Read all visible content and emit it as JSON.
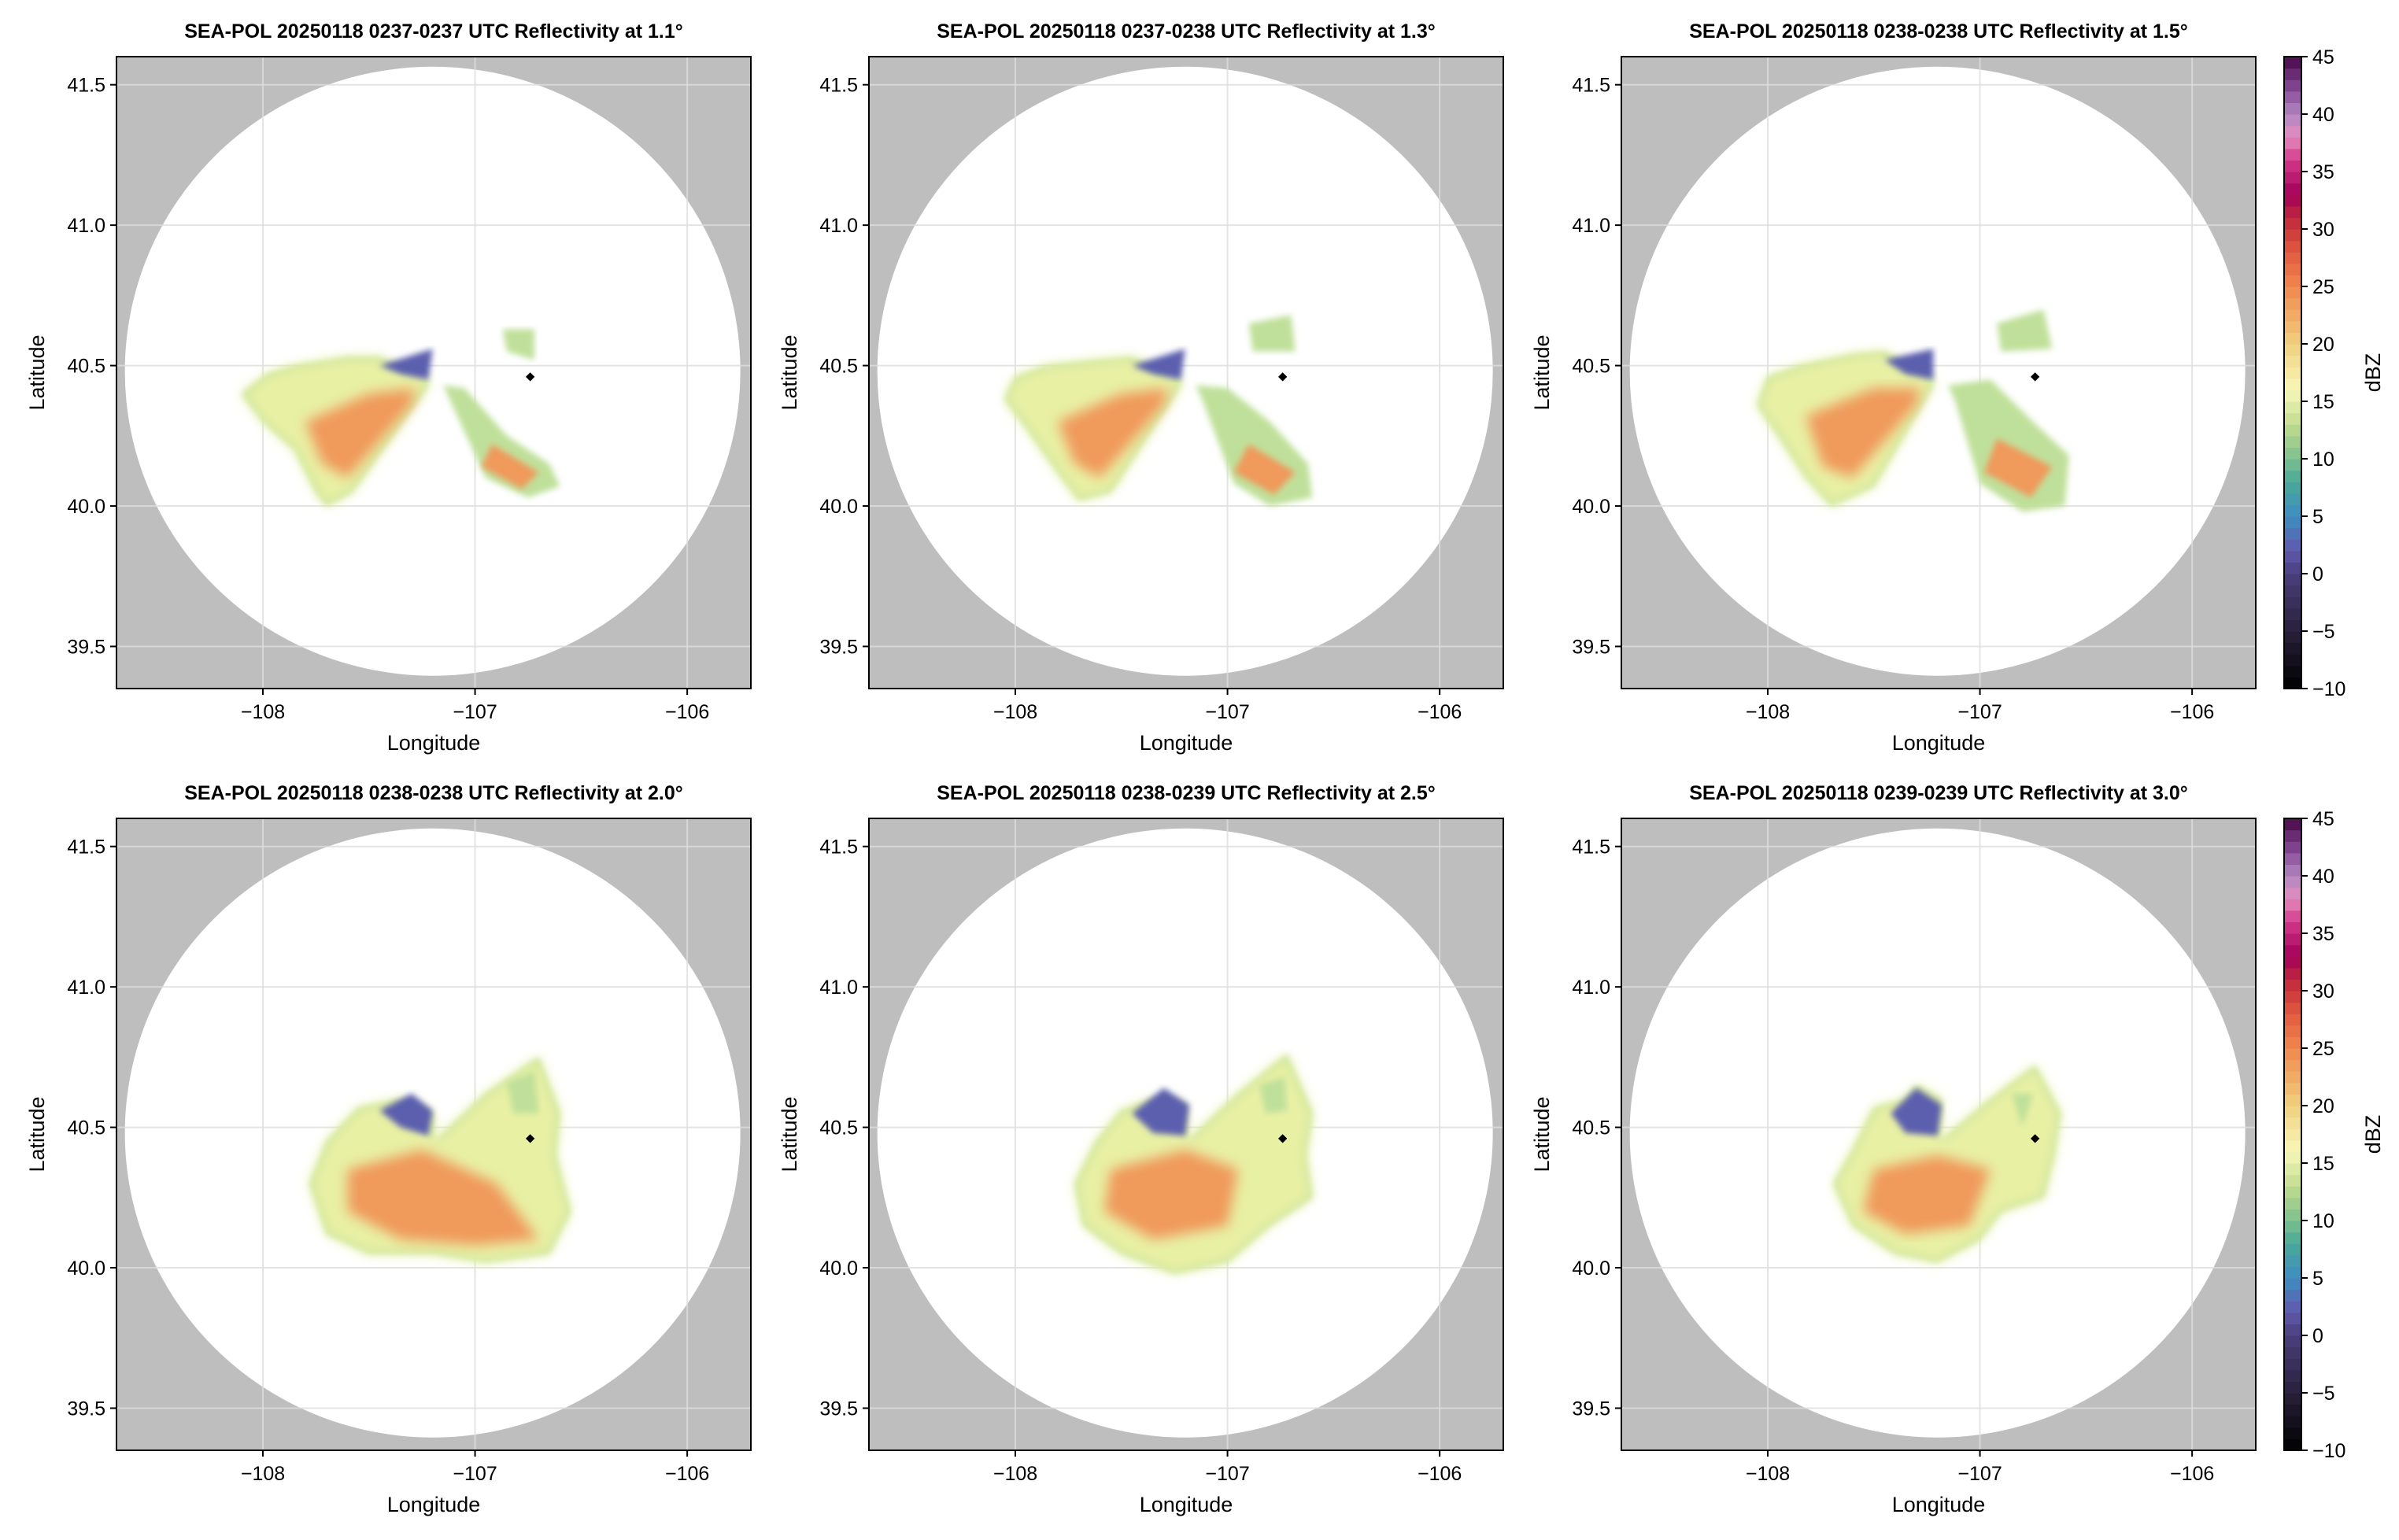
{
  "chart_data": [
    {
      "type": "heatmap",
      "title": "SEA-POL 20250118 0237-0237 UTC Reflectivity at 1.1°",
      "xlabel": "Longitude",
      "ylabel": "Latitude",
      "style": "wedges",
      "echo": {
        "outer": [
          [
            -107.22,
            40.45
          ],
          [
            -107.45,
            40.53
          ],
          [
            -107.6,
            40.53
          ],
          [
            -107.85,
            40.5
          ],
          [
            -107.98,
            40.47
          ],
          [
            -108.1,
            40.4
          ],
          [
            -108.0,
            40.3
          ],
          [
            -107.85,
            40.2
          ],
          [
            -107.75,
            40.05
          ],
          [
            -107.7,
            40.0
          ],
          [
            -107.58,
            40.05
          ],
          [
            -107.22,
            40.43
          ]
        ],
        "core": [
          [
            -107.28,
            40.42
          ],
          [
            -107.5,
            40.4
          ],
          [
            -107.8,
            40.3
          ],
          [
            -107.72,
            40.15
          ],
          [
            -107.6,
            40.1
          ],
          [
            -107.3,
            40.36
          ]
        ],
        "blue": [
          [
            -107.2,
            40.56
          ],
          [
            -107.45,
            40.5
          ],
          [
            -107.35,
            40.47
          ],
          [
            -107.22,
            40.45
          ]
        ],
        "se_outer": [
          [
            -107.15,
            40.43
          ],
          [
            -107.05,
            40.42
          ],
          [
            -106.85,
            40.25
          ],
          [
            -106.65,
            40.15
          ],
          [
            -106.6,
            40.07
          ],
          [
            -106.75,
            40.03
          ],
          [
            -106.95,
            40.1
          ],
          [
            -107.12,
            40.38
          ]
        ],
        "se_core": [
          [
            -106.92,
            40.22
          ],
          [
            -106.7,
            40.12
          ],
          [
            -106.78,
            40.06
          ],
          [
            -106.97,
            40.14
          ]
        ],
        "ne": [
          [
            -106.87,
            40.63
          ],
          [
            -106.72,
            40.63
          ],
          [
            -106.72,
            40.52
          ],
          [
            -106.85,
            40.55
          ]
        ]
      }
    },
    {
      "type": "heatmap",
      "title": "SEA-POL 20250118 0237-0238 UTC Reflectivity at 1.3°",
      "xlabel": "Longitude",
      "ylabel": "Latitude",
      "style": "wedges",
      "echo": {
        "outer": [
          [
            -107.22,
            40.45
          ],
          [
            -107.45,
            40.53
          ],
          [
            -107.6,
            40.52
          ],
          [
            -107.85,
            40.5
          ],
          [
            -108.0,
            40.46
          ],
          [
            -108.05,
            40.38
          ],
          [
            -107.95,
            40.28
          ],
          [
            -107.8,
            40.12
          ],
          [
            -107.7,
            40.02
          ],
          [
            -107.55,
            40.05
          ],
          [
            -107.22,
            40.43
          ]
        ],
        "core": [
          [
            -107.28,
            40.42
          ],
          [
            -107.5,
            40.4
          ],
          [
            -107.8,
            40.3
          ],
          [
            -107.72,
            40.15
          ],
          [
            -107.6,
            40.1
          ],
          [
            -107.3,
            40.36
          ]
        ],
        "blue": [
          [
            -107.2,
            40.56
          ],
          [
            -107.45,
            40.5
          ],
          [
            -107.35,
            40.47
          ],
          [
            -107.22,
            40.45
          ]
        ],
        "se_outer": [
          [
            -107.15,
            40.43
          ],
          [
            -107.0,
            40.42
          ],
          [
            -106.8,
            40.3
          ],
          [
            -106.62,
            40.15
          ],
          [
            -106.6,
            40.03
          ],
          [
            -106.8,
            40.0
          ],
          [
            -106.97,
            40.08
          ],
          [
            -107.12,
            40.38
          ]
        ],
        "se_core": [
          [
            -106.9,
            40.22
          ],
          [
            -106.68,
            40.12
          ],
          [
            -106.78,
            40.04
          ],
          [
            -106.97,
            40.12
          ]
        ],
        "ne": [
          [
            -106.9,
            40.65
          ],
          [
            -106.7,
            40.68
          ],
          [
            -106.68,
            40.55
          ],
          [
            -106.88,
            40.55
          ]
        ]
      }
    },
    {
      "type": "heatmap",
      "title": "SEA-POL 20250118 0238-0238 UTC Reflectivity at 1.5°",
      "xlabel": "Longitude",
      "ylabel": "Latitude",
      "style": "wedges",
      "echo": {
        "outer": [
          [
            -107.22,
            40.45
          ],
          [
            -107.45,
            40.55
          ],
          [
            -107.6,
            40.54
          ],
          [
            -107.85,
            40.5
          ],
          [
            -108.0,
            40.46
          ],
          [
            -108.05,
            40.36
          ],
          [
            -107.95,
            40.25
          ],
          [
            -107.82,
            40.1
          ],
          [
            -107.7,
            40.0
          ],
          [
            -107.5,
            40.07
          ],
          [
            -107.22,
            40.43
          ]
        ],
        "core": [
          [
            -107.28,
            40.42
          ],
          [
            -107.5,
            40.42
          ],
          [
            -107.82,
            40.32
          ],
          [
            -107.74,
            40.14
          ],
          [
            -107.6,
            40.1
          ],
          [
            -107.3,
            40.36
          ]
        ],
        "blue": [
          [
            -107.22,
            40.56
          ],
          [
            -107.45,
            40.52
          ],
          [
            -107.35,
            40.47
          ],
          [
            -107.22,
            40.45
          ]
        ],
        "se_outer": [
          [
            -107.15,
            40.43
          ],
          [
            -106.95,
            40.45
          ],
          [
            -106.75,
            40.3
          ],
          [
            -106.58,
            40.18
          ],
          [
            -106.6,
            40.0
          ],
          [
            -106.8,
            39.98
          ],
          [
            -107.0,
            40.08
          ],
          [
            -107.12,
            40.38
          ]
        ],
        "se_core": [
          [
            -106.92,
            40.24
          ],
          [
            -106.66,
            40.14
          ],
          [
            -106.76,
            40.03
          ],
          [
            -106.98,
            40.12
          ]
        ],
        "ne": [
          [
            -106.92,
            40.65
          ],
          [
            -106.7,
            40.7
          ],
          [
            -106.66,
            40.56
          ],
          [
            -106.9,
            40.55
          ]
        ]
      }
    },
    {
      "type": "heatmap",
      "title": "SEA-POL 20250118 0238-0238 UTC Reflectivity at 2.0°",
      "xlabel": "Longitude",
      "ylabel": "Latitude",
      "style": "blob",
      "echo": {
        "outer": [
          [
            -107.78,
            40.3
          ],
          [
            -107.7,
            40.45
          ],
          [
            -107.55,
            40.57
          ],
          [
            -107.35,
            40.6
          ],
          [
            -107.2,
            40.55
          ],
          [
            -107.19,
            40.45
          ],
          [
            -106.95,
            40.62
          ],
          [
            -106.7,
            40.75
          ],
          [
            -106.6,
            40.55
          ],
          [
            -106.62,
            40.4
          ],
          [
            -106.55,
            40.2
          ],
          [
            -106.65,
            40.05
          ],
          [
            -106.95,
            40.02
          ],
          [
            -107.2,
            40.05
          ],
          [
            -107.5,
            40.05
          ],
          [
            -107.7,
            40.12
          ]
        ],
        "core": [
          [
            -107.6,
            40.35
          ],
          [
            -107.25,
            40.42
          ],
          [
            -106.9,
            40.3
          ],
          [
            -106.7,
            40.1
          ],
          [
            -107.0,
            40.08
          ],
          [
            -107.35,
            40.1
          ],
          [
            -107.6,
            40.2
          ]
        ],
        "blue": [
          [
            -107.45,
            40.56
          ],
          [
            -107.3,
            40.62
          ],
          [
            -107.2,
            40.56
          ],
          [
            -107.22,
            40.47
          ],
          [
            -107.35,
            40.5
          ]
        ],
        "ne": [
          [
            -106.85,
            40.66
          ],
          [
            -106.72,
            40.7
          ],
          [
            -106.7,
            40.55
          ],
          [
            -106.82,
            40.55
          ]
        ]
      }
    },
    {
      "type": "heatmap",
      "title": "SEA-POL 20250118 0238-0239 UTC Reflectivity at 2.5°",
      "xlabel": "Longitude",
      "ylabel": "Latitude",
      "style": "blob",
      "echo": {
        "outer": [
          [
            -107.72,
            40.3
          ],
          [
            -107.62,
            40.45
          ],
          [
            -107.5,
            40.56
          ],
          [
            -107.35,
            40.6
          ],
          [
            -107.2,
            40.58
          ],
          [
            -107.19,
            40.45
          ],
          [
            -106.95,
            40.62
          ],
          [
            -106.72,
            40.76
          ],
          [
            -106.6,
            40.55
          ],
          [
            -106.63,
            40.4
          ],
          [
            -106.6,
            40.25
          ],
          [
            -106.8,
            40.15
          ],
          [
            -107.0,
            40.02
          ],
          [
            -107.25,
            39.98
          ],
          [
            -107.5,
            40.05
          ],
          [
            -107.68,
            40.15
          ]
        ],
        "core": [
          [
            -107.55,
            40.35
          ],
          [
            -107.2,
            40.42
          ],
          [
            -106.95,
            40.35
          ],
          [
            -107.0,
            40.15
          ],
          [
            -107.35,
            40.1
          ],
          [
            -107.58,
            40.2
          ]
        ],
        "blue": [
          [
            -107.45,
            40.55
          ],
          [
            -107.3,
            40.64
          ],
          [
            -107.18,
            40.58
          ],
          [
            -107.2,
            40.47
          ],
          [
            -107.35,
            40.48
          ]
        ],
        "ne": [
          [
            -106.85,
            40.65
          ],
          [
            -106.73,
            40.68
          ],
          [
            -106.72,
            40.56
          ],
          [
            -106.82,
            40.55
          ]
        ]
      }
    },
    {
      "type": "heatmap",
      "title": "SEA-POL 20250118 0239-0239 UTC Reflectivity at 3.0°",
      "xlabel": "Longitude",
      "ylabel": "Latitude",
      "style": "blob",
      "echo": {
        "outer": [
          [
            -107.69,
            40.3
          ],
          [
            -107.6,
            40.42
          ],
          [
            -107.5,
            40.57
          ],
          [
            -107.35,
            40.6
          ],
          [
            -107.3,
            40.65
          ],
          [
            -107.18,
            40.6
          ],
          [
            -107.19,
            40.45
          ],
          [
            -106.95,
            40.6
          ],
          [
            -106.74,
            40.72
          ],
          [
            -106.62,
            40.55
          ],
          [
            -106.65,
            40.4
          ],
          [
            -106.7,
            40.25
          ],
          [
            -106.9,
            40.2
          ],
          [
            -107.0,
            40.1
          ],
          [
            -107.2,
            40.02
          ],
          [
            -107.4,
            40.05
          ],
          [
            -107.6,
            40.15
          ]
        ],
        "core": [
          [
            -107.5,
            40.35
          ],
          [
            -107.2,
            40.4
          ],
          [
            -106.95,
            40.35
          ],
          [
            -107.05,
            40.15
          ],
          [
            -107.35,
            40.12
          ],
          [
            -107.55,
            40.2
          ]
        ],
        "blue": [
          [
            -107.42,
            40.55
          ],
          [
            -107.3,
            40.64
          ],
          [
            -107.18,
            40.58
          ],
          [
            -107.2,
            40.47
          ],
          [
            -107.35,
            40.48
          ]
        ],
        "ne": [
          [
            -106.85,
            40.62
          ],
          [
            -106.75,
            40.62
          ],
          [
            -106.8,
            40.5
          ]
        ]
      }
    }
  ],
  "axes": {
    "xlim": [
      -108.69,
      -105.7
    ],
    "ylim": [
      39.35,
      41.6
    ],
    "xticks": [
      -108,
      -107,
      -106
    ],
    "xtick_labels": [
      "−108",
      "−107",
      "−106"
    ],
    "yticks": [
      39.5,
      40.0,
      40.5,
      41.0,
      41.5
    ],
    "ytick_labels": [
      "39.5",
      "40.0",
      "40.5",
      "41.0",
      "41.5"
    ],
    "radar_range_center": [
      -107.2,
      40.48
    ],
    "radar_marker": [
      -106.74,
      40.46
    ]
  },
  "colorbar": {
    "label": "dBZ",
    "range": [
      -10,
      45
    ],
    "ticks": [
      -10,
      -5,
      0,
      5,
      10,
      15,
      20,
      25,
      30,
      35,
      40,
      45
    ],
    "tick_labels": [
      "−10",
      "−5",
      "0",
      "5",
      "10",
      "15",
      "20",
      "25",
      "30",
      "35",
      "40",
      "45"
    ],
    "stops": [
      [
        -10,
        "#000000"
      ],
      [
        -5,
        "#28203a"
      ],
      [
        0,
        "#4a3f7c"
      ],
      [
        2,
        "#6058ac"
      ],
      [
        5,
        "#3f8ec2"
      ],
      [
        8,
        "#4aa898"
      ],
      [
        10,
        "#7cc08e"
      ],
      [
        13,
        "#c2dc8e"
      ],
      [
        16,
        "#f8f8b8"
      ],
      [
        20,
        "#f0d080"
      ],
      [
        25,
        "#f0884e"
      ],
      [
        28,
        "#e05a40"
      ],
      [
        31,
        "#c0283c"
      ],
      [
        33,
        "#a2005a"
      ],
      [
        36,
        "#d2388a"
      ],
      [
        38,
        "#e48cbe"
      ],
      [
        40,
        "#b088c0"
      ],
      [
        42,
        "#8a4e9a"
      ],
      [
        45,
        "#48084a"
      ]
    ]
  },
  "colors": {
    "outside": "#bebebe",
    "grid": "#dddddd",
    "outer": "#e8f0a4",
    "outer2": "#bfe09a",
    "core": "#f09a5c",
    "core2": "#e0603e",
    "blue": "#5b5fae",
    "teal": "#4aa898"
  }
}
